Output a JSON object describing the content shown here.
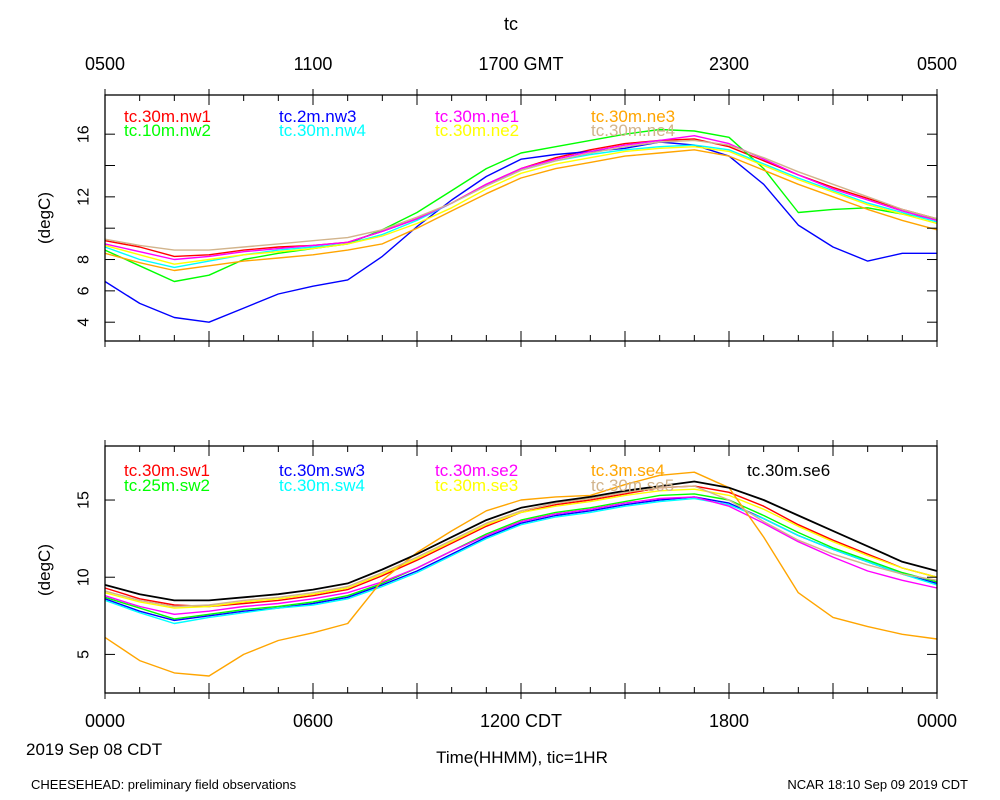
{
  "chart_data": [
    {
      "type": "line",
      "title": "tc",
      "ylabel": "(degC)",
      "ylim": [
        2.8,
        18.5
      ],
      "xlim": [
        0,
        24
      ],
      "yticks": [
        4,
        6,
        8,
        10,
        12,
        14,
        16
      ],
      "ytick_labels": [
        "4",
        "6",
        "8",
        "12",
        "16"
      ],
      "top_xticks": [
        0,
        3,
        6,
        9,
        12,
        15,
        18,
        21,
        24
      ],
      "top_xtick_labels": [
        "0500",
        "1100",
        "1700 GMT",
        "2300",
        "0500"
      ],
      "grid": false,
      "legend": "top-left, inside plot, two rows",
      "series": [
        {
          "name": "tc.30m.nw1",
          "color": "#ff0000",
          "x": [
            0,
            1,
            2,
            3,
            4,
            5,
            6,
            7,
            8,
            9,
            10,
            11,
            12,
            13,
            14,
            15,
            16,
            17,
            18,
            19,
            20,
            21,
            22,
            23,
            24
          ],
          "y": [
            9.2,
            8.8,
            8.2,
            8.3,
            8.6,
            8.8,
            8.9,
            9.1,
            9.8,
            10.6,
            11.6,
            12.8,
            13.8,
            14.5,
            15.0,
            15.4,
            15.6,
            15.7,
            15.2,
            14.3,
            13.4,
            12.6,
            11.9,
            11.2,
            10.6
          ]
        },
        {
          "name": "tc.10m.nw2",
          "color": "#00ff00",
          "x": [
            0,
            1,
            2,
            3,
            4,
            5,
            6,
            7,
            8,
            9,
            10,
            11,
            12,
            13,
            14,
            15,
            16,
            17,
            18,
            19,
            20,
            21,
            22,
            23,
            24
          ],
          "y": [
            8.6,
            7.6,
            6.6,
            7.0,
            8.0,
            8.4,
            8.7,
            9.0,
            9.9,
            11.0,
            12.4,
            13.8,
            14.8,
            15.2,
            15.6,
            16.0,
            16.3,
            16.2,
            15.8,
            13.8,
            11.0,
            11.2,
            11.3,
            10.9,
            10.6
          ]
        },
        {
          "name": "tc.2m.nw3",
          "color": "#0000ff",
          "x": [
            0,
            1,
            2,
            3,
            4,
            5,
            6,
            7,
            8,
            9,
            10,
            11,
            12,
            13,
            14,
            15,
            16,
            17,
            18,
            19,
            20,
            21,
            22,
            23,
            24
          ],
          "y": [
            6.6,
            5.2,
            4.3,
            4.0,
            4.9,
            5.8,
            6.3,
            6.7,
            8.2,
            10.1,
            11.8,
            13.3,
            14.4,
            14.7,
            14.9,
            15.1,
            15.5,
            15.3,
            14.6,
            12.8,
            10.2,
            8.8,
            7.9,
            8.4,
            8.4
          ]
        },
        {
          "name": "tc.30m.nw4",
          "color": "#00ffff",
          "x": [
            0,
            1,
            2,
            3,
            4,
            5,
            6,
            7,
            8,
            9,
            10,
            11,
            12,
            13,
            14,
            15,
            16,
            17,
            18,
            19,
            20,
            21,
            22,
            23,
            24
          ],
          "y": [
            8.8,
            8.0,
            7.5,
            7.9,
            8.3,
            8.6,
            8.8,
            9.0,
            9.6,
            10.5,
            11.6,
            12.7,
            13.7,
            14.3,
            14.7,
            15.0,
            15.2,
            15.3,
            15.0,
            14.1,
            13.2,
            12.4,
            11.6,
            11.0,
            10.4
          ]
        },
        {
          "name": "tc.30m.ne1",
          "color": "#ff00ff",
          "x": [
            0,
            1,
            2,
            3,
            4,
            5,
            6,
            7,
            8,
            9,
            10,
            11,
            12,
            13,
            14,
            15,
            16,
            17,
            18,
            19,
            20,
            21,
            22,
            23,
            24
          ],
          "y": [
            9.0,
            8.5,
            8.0,
            8.2,
            8.5,
            8.7,
            8.9,
            9.1,
            9.8,
            10.6,
            11.6,
            12.8,
            13.8,
            14.4,
            14.9,
            15.3,
            15.6,
            15.9,
            15.4,
            14.4,
            13.4,
            12.5,
            11.8,
            11.1,
            10.5
          ]
        },
        {
          "name": "tc.30m.ne2",
          "color": "#ffff00",
          "x": [
            0,
            1,
            2,
            3,
            4,
            5,
            6,
            7,
            8,
            9,
            10,
            11,
            12,
            13,
            14,
            15,
            16,
            17,
            18,
            19,
            20,
            21,
            22,
            23,
            24
          ],
          "y": [
            8.9,
            8.3,
            7.7,
            8.0,
            8.3,
            8.5,
            8.7,
            9.0,
            9.5,
            10.3,
            11.3,
            12.5,
            13.5,
            14.1,
            14.5,
            14.9,
            15.1,
            15.2,
            14.9,
            14.0,
            13.1,
            12.3,
            11.5,
            10.9,
            10.3
          ]
        },
        {
          "name": "tc.30m.ne3",
          "color": "#ffa500",
          "x": [
            0,
            1,
            2,
            3,
            4,
            5,
            6,
            7,
            8,
            9,
            10,
            11,
            12,
            13,
            14,
            15,
            16,
            17,
            18,
            19,
            20,
            21,
            22,
            23,
            24
          ],
          "y": [
            8.4,
            7.8,
            7.3,
            7.6,
            7.9,
            8.1,
            8.3,
            8.6,
            9.0,
            10.0,
            11.1,
            12.2,
            13.2,
            13.8,
            14.2,
            14.6,
            14.8,
            15.0,
            14.6,
            13.7,
            12.8,
            12.0,
            11.2,
            10.5,
            9.9
          ]
        },
        {
          "name": "tc.30m.ne4",
          "color": "#d2b48c",
          "x": [
            0,
            1,
            2,
            3,
            4,
            5,
            6,
            7,
            8,
            9,
            10,
            11,
            12,
            13,
            14,
            15,
            16,
            17,
            18,
            19,
            20,
            21,
            22,
            23,
            24
          ],
          "y": [
            9.3,
            8.9,
            8.6,
            8.6,
            8.8,
            9.0,
            9.2,
            9.4,
            9.9,
            10.7,
            11.6,
            12.7,
            13.7,
            14.3,
            14.8,
            15.2,
            15.5,
            15.6,
            15.3,
            14.5,
            13.6,
            12.8,
            12.0,
            11.2,
            10.6
          ]
        }
      ]
    },
    {
      "type": "line",
      "title": "",
      "xlabel": "Time(HHMM), tic=1HR",
      "ylabel": "(degC)",
      "ylim": [
        2.5,
        18.5
      ],
      "xlim": [
        0,
        24
      ],
      "yticks": [
        5,
        10,
        15
      ],
      "ytick_labels": [
        "5",
        "10",
        "15"
      ],
      "bottom_xticks": [
        0,
        3,
        6,
        9,
        12,
        15,
        18,
        21,
        24
      ],
      "bottom_xtick_labels": [
        "0000",
        "0600",
        "1200 CDT",
        "1800",
        "0000"
      ],
      "date_label": "2019 Sep 08 CDT",
      "grid": false,
      "legend": "top-left, inside plot, two rows",
      "series": [
        {
          "name": "tc.30m.sw1",
          "color": "#ff0000",
          "x": [
            0,
            1,
            2,
            3,
            4,
            5,
            6,
            7,
            8,
            9,
            10,
            11,
            12,
            13,
            14,
            15,
            16,
            17,
            18,
            19,
            20,
            21,
            22,
            23,
            24
          ],
          "y": [
            9.3,
            8.6,
            8.2,
            8.1,
            8.3,
            8.5,
            8.8,
            9.2,
            10.1,
            11.1,
            12.2,
            13.3,
            14.2,
            14.7,
            15.0,
            15.4,
            15.8,
            15.9,
            15.5,
            14.6,
            13.4,
            12.4,
            11.5,
            10.6,
            10.0
          ]
        },
        {
          "name": "tc.25m.sw2",
          "color": "#00ff00",
          "x": [
            0,
            1,
            2,
            3,
            4,
            5,
            6,
            7,
            8,
            9,
            10,
            11,
            12,
            13,
            14,
            15,
            16,
            17,
            18,
            19,
            20,
            21,
            22,
            23,
            24
          ],
          "y": [
            8.7,
            8.0,
            7.3,
            7.6,
            7.9,
            8.1,
            8.4,
            8.8,
            9.6,
            10.6,
            11.7,
            12.8,
            13.7,
            14.2,
            14.5,
            14.9,
            15.3,
            15.4,
            15.0,
            14.0,
            12.9,
            11.9,
            11.1,
            10.3,
            9.7
          ]
        },
        {
          "name": "tc.30m.sw3",
          "color": "#0000ff",
          "x": [
            0,
            1,
            2,
            3,
            4,
            5,
            6,
            7,
            8,
            9,
            10,
            11,
            12,
            13,
            14,
            15,
            16,
            17,
            18,
            19,
            20,
            21,
            22,
            23,
            24
          ],
          "y": [
            8.6,
            7.8,
            7.2,
            7.5,
            7.8,
            8.0,
            8.3,
            8.7,
            9.5,
            10.4,
            11.5,
            12.6,
            13.5,
            14.0,
            14.3,
            14.7,
            15.0,
            15.2,
            14.8,
            13.8,
            12.7,
            11.8,
            11.0,
            10.2,
            9.6
          ]
        },
        {
          "name": "tc.30m.sw4",
          "color": "#00ffff",
          "x": [
            0,
            1,
            2,
            3,
            4,
            5,
            6,
            7,
            8,
            9,
            10,
            11,
            12,
            13,
            14,
            15,
            16,
            17,
            18,
            19,
            20,
            21,
            22,
            23,
            24
          ],
          "y": [
            8.5,
            7.7,
            7.0,
            7.4,
            7.7,
            8.0,
            8.2,
            8.6,
            9.4,
            10.3,
            11.4,
            12.5,
            13.4,
            13.9,
            14.2,
            14.6,
            14.9,
            15.1,
            14.7,
            13.8,
            12.7,
            11.8,
            11.0,
            10.2,
            9.5
          ]
        },
        {
          "name": "tc.30m.se2",
          "color": "#ff00ff",
          "x": [
            0,
            1,
            2,
            3,
            4,
            5,
            6,
            7,
            8,
            9,
            10,
            11,
            12,
            13,
            14,
            15,
            16,
            17,
            18,
            19,
            20,
            21,
            22,
            23,
            24
          ],
          "y": [
            8.8,
            8.1,
            7.6,
            7.8,
            8.1,
            8.3,
            8.6,
            9.0,
            9.7,
            10.6,
            11.7,
            12.7,
            13.6,
            14.1,
            14.4,
            14.8,
            15.1,
            15.2,
            14.6,
            13.5,
            12.3,
            11.3,
            10.4,
            9.8,
            9.3
          ]
        },
        {
          "name": "tc.30m.se3",
          "color": "#ffff00",
          "x": [
            0,
            1,
            2,
            3,
            4,
            5,
            6,
            7,
            8,
            9,
            10,
            11,
            12,
            13,
            14,
            15,
            16,
            17,
            18,
            19,
            20,
            21,
            22,
            23,
            24
          ],
          "y": [
            9.0,
            8.4,
            8.0,
            8.1,
            8.4,
            8.6,
            8.9,
            9.3,
            10.2,
            11.2,
            12.3,
            13.4,
            14.2,
            14.6,
            14.9,
            15.3,
            15.6,
            15.7,
            15.3,
            14.4,
            13.3,
            12.3,
            11.4,
            10.6,
            10.0
          ]
        },
        {
          "name": "tc.3m.se4",
          "color": "#ffa500",
          "x": [
            0,
            1,
            2,
            3,
            4,
            5,
            6,
            7,
            8,
            9,
            10,
            11,
            12,
            13,
            14,
            15,
            16,
            17,
            18,
            19,
            20,
            21,
            22,
            23,
            24
          ],
          "y": [
            6.1,
            4.6,
            3.8,
            3.6,
            5.0,
            5.9,
            6.4,
            7.0,
            9.8,
            11.6,
            13.0,
            14.3,
            15.0,
            15.2,
            15.3,
            16.0,
            16.6,
            16.8,
            15.8,
            12.6,
            9.0,
            7.4,
            6.8,
            6.3,
            6.0
          ]
        },
        {
          "name": "tc.30m.se5",
          "color": "#d2b48c",
          "x": [
            0,
            1,
            2,
            3,
            4,
            5,
            6,
            7,
            8,
            9,
            10,
            11,
            12,
            13,
            14,
            15,
            16,
            17,
            18,
            19,
            20,
            21,
            22,
            23,
            24
          ],
          "y": [
            9.1,
            8.5,
            8.1,
            8.2,
            8.5,
            8.7,
            9.0,
            9.4,
            10.3,
            11.3,
            12.4,
            13.5,
            14.3,
            14.8,
            15.1,
            15.5,
            15.8,
            15.9,
            15.0,
            13.6,
            12.4,
            11.5,
            10.8,
            10.2,
            9.8
          ]
        },
        {
          "name": "tc.30m.se6",
          "color": "#000000",
          "x": [
            0,
            1,
            2,
            3,
            4,
            5,
            6,
            7,
            8,
            9,
            10,
            11,
            12,
            13,
            14,
            15,
            16,
            17,
            18,
            19,
            20,
            21,
            22,
            23,
            24
          ],
          "y": [
            9.5,
            8.9,
            8.5,
            8.5,
            8.7,
            8.9,
            9.2,
            9.6,
            10.5,
            11.5,
            12.6,
            13.7,
            14.5,
            14.9,
            15.2,
            15.6,
            15.9,
            16.2,
            15.8,
            15.0,
            14.0,
            13.0,
            12.0,
            11.0,
            10.4
          ]
        }
      ]
    }
  ],
  "footer": {
    "left": "CHEESEHEAD: preliminary field observations",
    "right": "NCAR 18:10 Sep 09 2019 CDT"
  }
}
